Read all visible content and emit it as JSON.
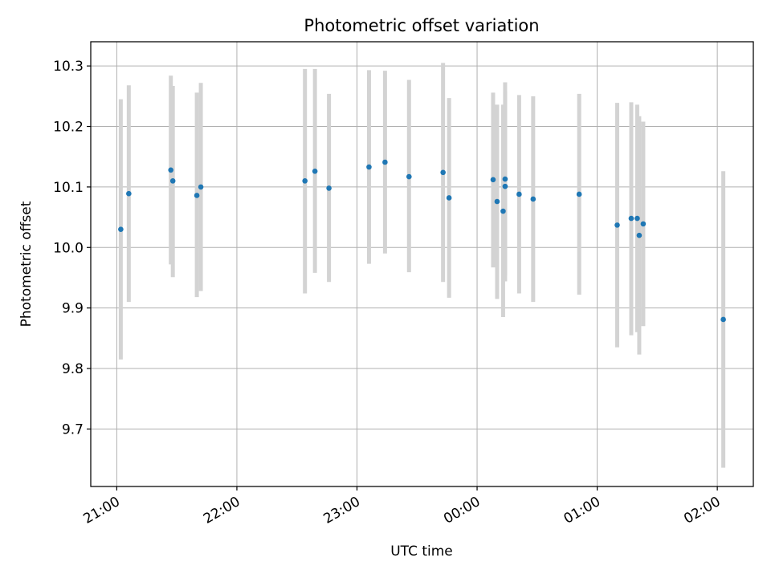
{
  "chart_data": {
    "type": "scatter",
    "title": "Photometric offset variation",
    "xlabel": "UTC time",
    "ylabel": "Photometric offset",
    "x_tick_labels": [
      "21:00",
      "22:00",
      "23:00",
      "00:00",
      "01:00",
      "02:00"
    ],
    "y_tick_labels": [
      "9.7",
      "9.8",
      "9.9",
      "10.0",
      "10.1",
      "10.2",
      "10.3"
    ],
    "xlim": [
      "20:47",
      "02:18"
    ],
    "ylim": [
      9.605,
      10.34
    ],
    "grid": true,
    "colors": {
      "marker": "#1f77b4",
      "errorbar": "#d3d3d3",
      "grid": "#b0b0b0"
    },
    "series": [
      {
        "x": [
          "21:02",
          "21:06",
          "21:27",
          "21:28",
          "21:40",
          "21:42",
          "22:34",
          "22:39",
          "22:46",
          "23:06",
          "23:14",
          "23:26",
          "23:43",
          "23:46",
          "00:08",
          "00:10",
          "00:13",
          "00:14",
          "00:14",
          "00:21",
          "00:28",
          "00:51",
          "01:10",
          "01:17",
          "01:20",
          "01:21",
          "01:23",
          "02:03"
        ],
        "y": [
          10.03,
          10.089,
          10.128,
          10.11,
          10.086,
          10.1,
          10.11,
          10.126,
          10.098,
          10.133,
          10.141,
          10.117,
          10.124,
          10.082,
          10.112,
          10.076,
          10.06,
          10.113,
          10.101,
          10.088,
          10.08,
          10.088,
          10.037,
          10.048,
          10.048,
          10.02,
          10.039,
          9.881
        ],
        "yerr_low": [
          9.815,
          9.91,
          9.972,
          9.951,
          9.918,
          9.928,
          9.924,
          9.958,
          9.943,
          9.973,
          9.99,
          9.959,
          9.943,
          9.917,
          9.967,
          9.915,
          9.885,
          9.954,
          9.944,
          9.924,
          9.91,
          9.922,
          9.835,
          9.855,
          9.86,
          9.823,
          9.87,
          9.636
        ],
        "yerr_high": [
          10.245,
          10.268,
          10.284,
          10.267,
          10.256,
          10.272,
          10.295,
          10.295,
          10.254,
          10.293,
          10.292,
          10.277,
          10.305,
          10.247,
          10.256,
          10.236,
          10.236,
          10.273,
          10.258,
          10.252,
          10.25,
          10.254,
          10.239,
          10.24,
          10.236,
          10.217,
          10.208,
          10.126
        ]
      }
    ]
  }
}
